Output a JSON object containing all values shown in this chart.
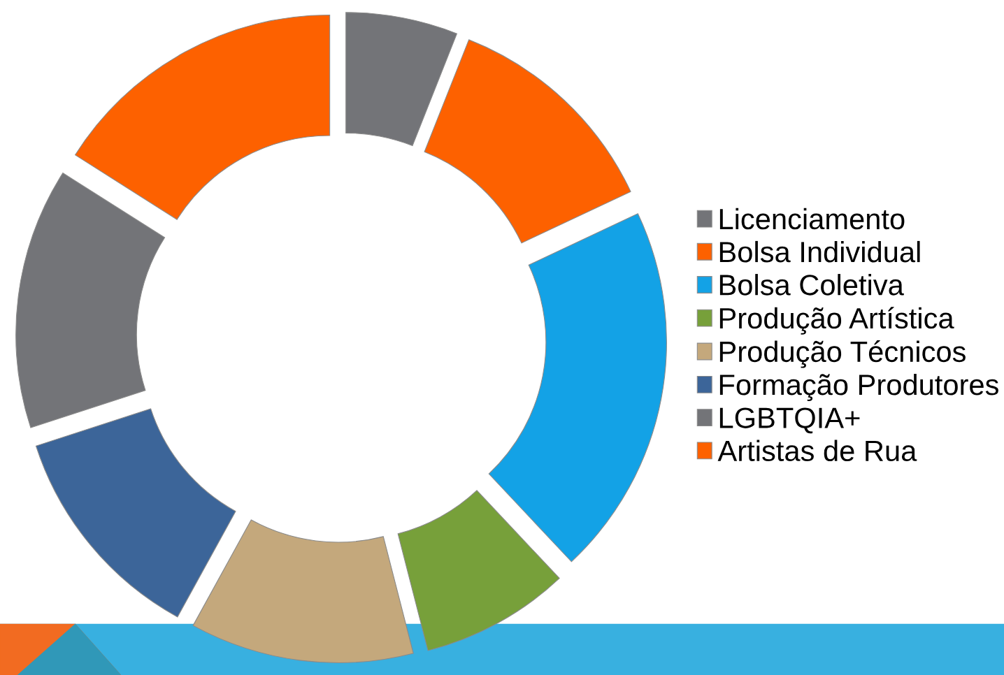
{
  "chart_data": {
    "type": "donut",
    "categories": [
      "Licenciamento",
      "Bolsa Individual",
      "Bolsa Coletiva",
      "Produção Artística",
      "Produção Técnicos",
      "Formação Produtores",
      "LGBTQIA+",
      "Artistas de Rua"
    ],
    "values": [
      6,
      12,
      20,
      8,
      12,
      12,
      14,
      16
    ],
    "colors": [
      "#737478",
      "#fd6100",
      "#13a2e6",
      "#77a03a",
      "#c4a87c",
      "#3c6599",
      "#737478",
      "#fd6100"
    ],
    "legend": "right"
  }
}
